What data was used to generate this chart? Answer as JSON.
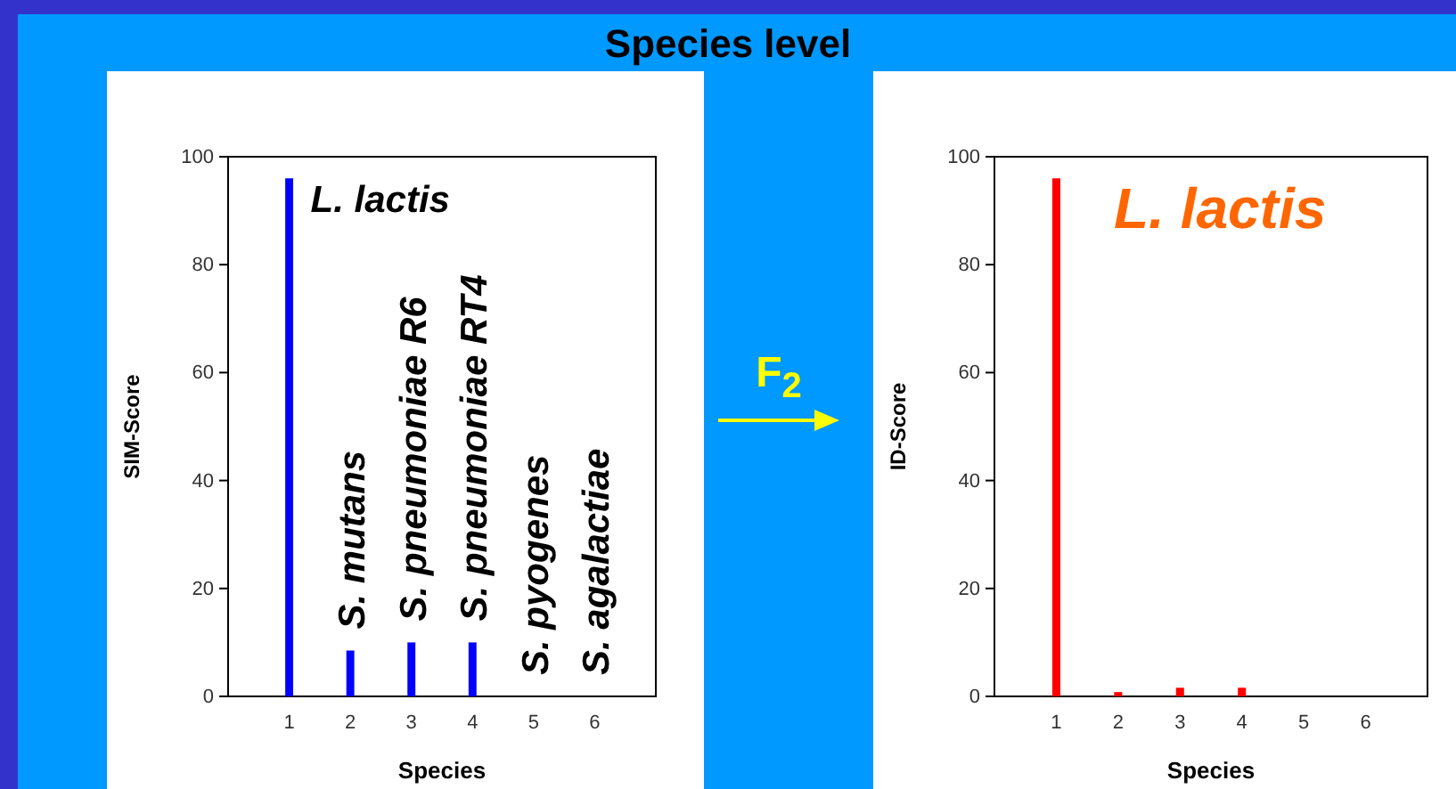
{
  "chart_data": [
    {
      "type": "bar",
      "title": "Species level",
      "xlabel": "Species",
      "ylabel": "SIM-Score",
      "x": [
        1,
        2,
        3,
        4,
        5,
        6
      ],
      "series": [
        {
          "color": "#0000ff",
          "values": [
            96,
            8.5,
            10,
            10,
            0,
            0
          ]
        }
      ],
      "xlim": [
        0,
        7
      ],
      "ylim": [
        0,
        100
      ],
      "xticks": [
        1,
        2,
        3,
        4,
        5,
        6
      ],
      "yticks": [
        0,
        20,
        40,
        60,
        80,
        100
      ],
      "annotations": [
        "L. lactis",
        "S. mutans",
        "S. pneumoniae R6",
        "S. pneumoniae RT4",
        "S. pyogenes",
        "S. agalactiae",
        "F$_{2}$"
      ]
    },
    {
      "type": "bar",
      "xlabel": "Species",
      "ylabel": "ID-Score",
      "x": [
        1,
        2,
        3,
        4,
        5,
        6
      ],
      "series": [
        {
          "color": "#ff0000",
          "values": [
            96,
            0.8,
            1.6,
            1.6,
            0,
            0
          ]
        }
      ],
      "xlim": [
        0,
        7
      ],
      "ylim": [
        0,
        100
      ],
      "xticks": [
        1,
        2,
        3,
        4,
        5,
        6
      ],
      "yticks": [
        0,
        20,
        40,
        60,
        80,
        100
      ],
      "annotations": [
        "L. lactis"
      ]
    }
  ]
}
